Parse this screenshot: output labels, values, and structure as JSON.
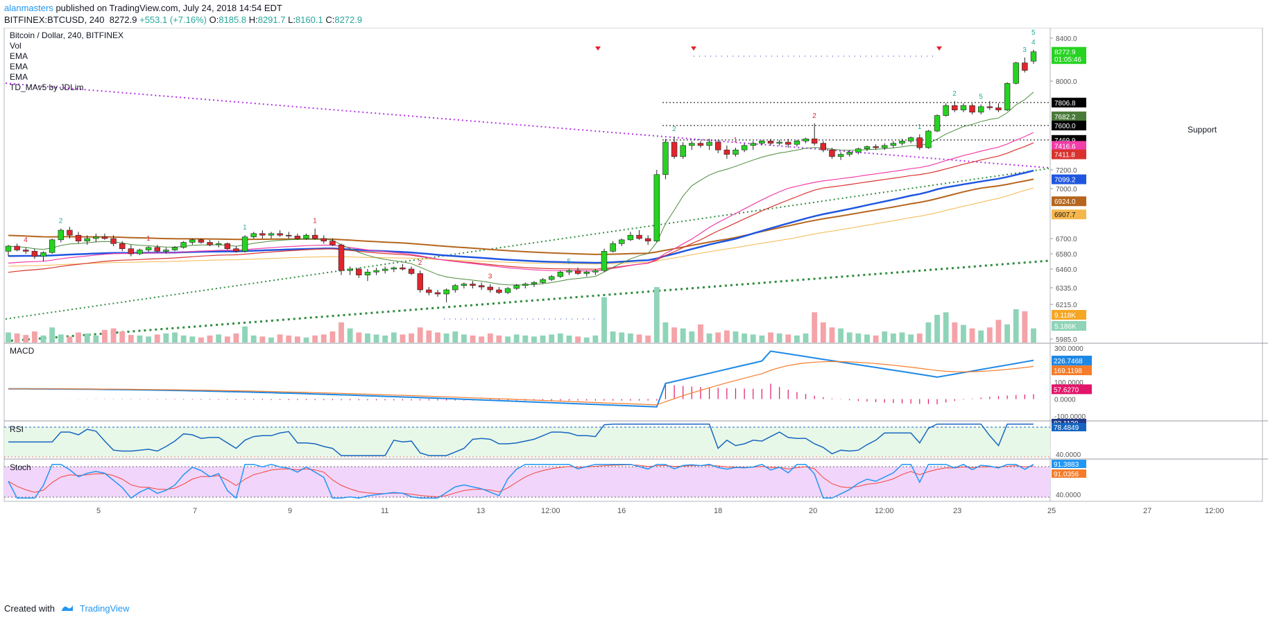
{
  "header": {
    "author": "alanmasters",
    "published": "published on TradingView.com, July 24, 2018 14:54 EDT",
    "symbol": "BITFINEX:BTCUSD, 240",
    "last": "8272.9",
    "change": "+553.1 (+7.16%)",
    "o_label": "O:",
    "o": "8185.8",
    "h_label": "H:",
    "h": "8291.7",
    "l_label": "L:",
    "l": "8160.1",
    "c_label": "C:",
    "c": "8272.9"
  },
  "legend": {
    "title": "Bitcoin / Dollar, 240, BITFINEX",
    "items": [
      "Vol",
      "EMA",
      "EMA",
      "EMA",
      "TD_MAv5 by JDLim"
    ]
  },
  "annotations": {
    "support": "Support"
  },
  "colors": {
    "up": "#26d321",
    "down": "#e0252d",
    "vol_up": "#8fd4b8",
    "vol_down": "#f4a3a8",
    "ema_fast": "#4a8b3a",
    "ema_mid": "#f23ea8",
    "ema_red": "#d9322e",
    "ema_blue": "#1f56e0",
    "ema_brown": "#b5651d",
    "ema_gold": "#f5b74d",
    "trend_purple": "#b233e8",
    "trend_green": "#2e8b3e",
    "macd": "#1e88e5",
    "signal": "#f57c2a",
    "hist": "#e3156a",
    "rsi": "#1565c0",
    "stoch_k": "#2196f3",
    "stoch_d": "#f44336"
  },
  "chart_data": {
    "type": "candlestick",
    "price_axis_ticks": [
      "8400.0",
      "8000.0",
      "7200.0",
      "7000.0",
      "6700.0",
      "6580.0",
      "6460.0",
      "6335.0",
      "6215.0",
      "5985.0"
    ],
    "price_labels": [
      {
        "value": "8272.9",
        "bg": "#26d321",
        "fg": "#ffffff",
        "price": 8272.9
      },
      {
        "value": "01:05:46",
        "bg": "#26d321",
        "fg": "#ffffff",
        "price": 8205
      },
      {
        "value": "7806.8",
        "bg": "#000000",
        "fg": "#ffffff",
        "price": 7806.8
      },
      {
        "value": "7682.2",
        "bg": "#4a7a3a",
        "fg": "#ffffff",
        "price": 7682.2
      },
      {
        "value": "7600.0",
        "bg": "#000000",
        "fg": "#ffffff",
        "price": 7600
      },
      {
        "value": "7469.9",
        "bg": "#000000",
        "fg": "#ffffff",
        "price": 7469.9
      },
      {
        "value": "7416.6",
        "bg": "#f23ea8",
        "fg": "#ffffff",
        "price": 7416.6
      },
      {
        "value": "7411.8",
        "bg": "#d9322e",
        "fg": "#ffffff",
        "price": 7340
      },
      {
        "value": "7099.2",
        "bg": "#1f56e0",
        "fg": "#ffffff",
        "price": 7099.2
      },
      {
        "value": "6924.0",
        "bg": "#b5651d",
        "fg": "#ffffff",
        "price": 6924
      },
      {
        "value": "6907.7",
        "bg": "#f5b74d",
        "fg": "#131722",
        "price": 6845
      }
    ],
    "volume_labels": [
      {
        "value": "9.118K",
        "bg": "#f5a623",
        "fg": "#ffffff"
      },
      {
        "value": "5.186K",
        "bg": "#8fd4b8",
        "fg": "#ffffff"
      }
    ],
    "x_ticks": [
      "5",
      "7",
      "9",
      "11",
      "13",
      "12:00",
      "16",
      "18",
      "20",
      "12:00",
      "23",
      "25",
      "27",
      "12:00"
    ],
    "candles": [
      [
        6600,
        6650,
        6560,
        6640
      ],
      [
        6640,
        6660,
        6600,
        6610
      ],
      [
        6610,
        6630,
        6580,
        6600
      ],
      [
        6600,
        6620,
        6540,
        6560
      ],
      [
        6560,
        6600,
        6520,
        6590
      ],
      [
        6590,
        6700,
        6580,
        6690
      ],
      [
        6690,
        6760,
        6670,
        6750
      ],
      [
        6750,
        6770,
        6700,
        6720
      ],
      [
        6720,
        6740,
        6660,
        6680
      ],
      [
        6680,
        6720,
        6650,
        6700
      ],
      [
        6700,
        6730,
        6670,
        6710
      ],
      [
        6710,
        6730,
        6690,
        6700
      ],
      [
        6700,
        6720,
        6640,
        6660
      ],
      [
        6660,
        6680,
        6600,
        6620
      ],
      [
        6620,
        6650,
        6560,
        6580
      ],
      [
        6580,
        6620,
        6570,
        6610
      ],
      [
        6610,
        6640,
        6590,
        6630
      ],
      [
        6630,
        6650,
        6590,
        6600
      ],
      [
        6600,
        6630,
        6580,
        6610
      ],
      [
        6610,
        6640,
        6600,
        6630
      ],
      [
        6630,
        6680,
        6620,
        6670
      ],
      [
        6670,
        6700,
        6650,
        6690
      ],
      [
        6690,
        6700,
        6660,
        6670
      ],
      [
        6670,
        6690,
        6640,
        6650
      ],
      [
        6650,
        6680,
        6630,
        6660
      ],
      [
        6660,
        6670,
        6610,
        6620
      ],
      [
        6620,
        6640,
        6590,
        6600
      ],
      [
        6600,
        6720,
        6590,
        6710
      ],
      [
        6710,
        6740,
        6700,
        6730
      ],
      [
        6730,
        6750,
        6700,
        6720
      ],
      [
        6720,
        6740,
        6700,
        6730
      ],
      [
        6730,
        6750,
        6710,
        6720
      ],
      [
        6720,
        6740,
        6700,
        6715
      ],
      [
        6715,
        6730,
        6690,
        6700
      ],
      [
        6700,
        6730,
        6690,
        6720
      ],
      [
        6720,
        6760,
        6690,
        6700
      ],
      [
        6700,
        6720,
        6660,
        6680
      ],
      [
        6680,
        6700,
        6640,
        6650
      ],
      [
        6650,
        6660,
        6420,
        6450
      ],
      [
        6450,
        6480,
        6420,
        6460
      ],
      [
        6460,
        6470,
        6400,
        6420
      ],
      [
        6420,
        6460,
        6380,
        6440
      ],
      [
        6440,
        6470,
        6420,
        6450
      ],
      [
        6450,
        6480,
        6430,
        6460
      ],
      [
        6460,
        6480,
        6440,
        6470
      ],
      [
        6470,
        6500,
        6450,
        6460
      ],
      [
        6460,
        6480,
        6420,
        6430
      ],
      [
        6430,
        6450,
        6300,
        6320
      ],
      [
        6320,
        6340,
        6280,
        6300
      ],
      [
        6300,
        6320,
        6270,
        6290
      ],
      [
        6290,
        6330,
        6230,
        6320
      ],
      [
        6320,
        6360,
        6300,
        6350
      ],
      [
        6350,
        6370,
        6330,
        6360
      ],
      [
        6360,
        6380,
        6330,
        6350
      ],
      [
        6350,
        6370,
        6320,
        6340
      ],
      [
        6340,
        6360,
        6300,
        6320
      ],
      [
        6320,
        6340,
        6290,
        6300
      ],
      [
        6300,
        6340,
        6290,
        6330
      ],
      [
        6330,
        6360,
        6320,
        6350
      ],
      [
        6350,
        6370,
        6330,
        6360
      ],
      [
        6360,
        6380,
        6340,
        6370
      ],
      [
        6370,
        6400,
        6360,
        6390
      ],
      [
        6390,
        6420,
        6380,
        6410
      ],
      [
        6410,
        6450,
        6400,
        6440
      ],
      [
        6440,
        6460,
        6420,
        6450
      ],
      [
        6450,
        6470,
        6420,
        6430
      ],
      [
        6430,
        6450,
        6410,
        6440
      ],
      [
        6440,
        6460,
        6420,
        6450
      ],
      [
        6450,
        6620,
        6440,
        6600
      ],
      [
        6600,
        6680,
        6590,
        6660
      ],
      [
        6660,
        6700,
        6640,
        6690
      ],
      [
        6690,
        6740,
        6680,
        6720
      ],
      [
        6720,
        6750,
        6690,
        6700
      ],
      [
        6700,
        6720,
        6650,
        6680
      ],
      [
        6680,
        7200,
        6670,
        7150
      ],
      [
        7150,
        7480,
        7100,
        7450
      ],
      [
        7450,
        7500,
        7300,
        7320
      ],
      [
        7320,
        7450,
        7300,
        7420
      ],
      [
        7420,
        7460,
        7380,
        7440
      ],
      [
        7440,
        7460,
        7400,
        7420
      ],
      [
        7420,
        7480,
        7380,
        7450
      ],
      [
        7450,
        7470,
        7350,
        7380
      ],
      [
        7380,
        7420,
        7300,
        7340
      ],
      [
        7340,
        7400,
        7320,
        7380
      ],
      [
        7380,
        7440,
        7360,
        7420
      ],
      [
        7420,
        7460,
        7380,
        7440
      ],
      [
        7440,
        7470,
        7420,
        7460
      ],
      [
        7460,
        7480,
        7420,
        7440
      ],
      [
        7440,
        7470,
        7420,
        7450
      ],
      [
        7450,
        7480,
        7400,
        7430
      ],
      [
        7430,
        7470,
        7410,
        7460
      ],
      [
        7460,
        7490,
        7440,
        7480
      ],
      [
        7480,
        7620,
        7420,
        7440
      ],
      [
        7440,
        7460,
        7360,
        7380
      ],
      [
        7380,
        7400,
        7300,
        7320
      ],
      [
        7320,
        7360,
        7290,
        7340
      ],
      [
        7340,
        7380,
        7320,
        7360
      ],
      [
        7360,
        7400,
        7340,
        7390
      ],
      [
        7390,
        7420,
        7370,
        7410
      ],
      [
        7410,
        7430,
        7380,
        7400
      ],
      [
        7400,
        7440,
        7380,
        7420
      ],
      [
        7420,
        7460,
        7400,
        7440
      ],
      [
        7440,
        7480,
        7420,
        7460
      ],
      [
        7460,
        7500,
        7440,
        7490
      ],
      [
        7490,
        7520,
        7380,
        7400
      ],
      [
        7400,
        7560,
        7390,
        7550
      ],
      [
        7550,
        7700,
        7540,
        7690
      ],
      [
        7690,
        7800,
        7680,
        7780
      ],
      [
        7780,
        7820,
        7720,
        7740
      ],
      [
        7740,
        7800,
        7720,
        7780
      ],
      [
        7780,
        7800,
        7700,
        7720
      ],
      [
        7720,
        7790,
        7700,
        7770
      ],
      [
        7770,
        7820,
        7740,
        7760
      ],
      [
        7760,
        7800,
        7720,
        7740
      ],
      [
        7740,
        7990,
        7730,
        7980
      ],
      [
        7980,
        8180,
        7970,
        8170
      ],
      [
        8170,
        8220,
        8080,
        8100
      ],
      [
        8185.8,
        8291.7,
        8160.1,
        8272.9
      ]
    ],
    "markers": [
      {
        "i": 2,
        "text": "4",
        "color": "#e0252d"
      },
      {
        "i": 6,
        "text": "2",
        "color": "#26a69a"
      },
      {
        "i": 16,
        "text": "1",
        "color": "#e0252d"
      },
      {
        "i": 27,
        "text": "1",
        "color": "#26a69a"
      },
      {
        "i": 35,
        "text": "1",
        "color": "#e0252d"
      },
      {
        "i": 47,
        "text": "2",
        "color": "#e0252d"
      },
      {
        "i": 55,
        "text": "3",
        "color": "#e0252d"
      },
      {
        "i": 64,
        "text": "5",
        "color": "#26a69a"
      },
      {
        "i": 76,
        "text": "2",
        "color": "#26a69a"
      },
      {
        "i": 83,
        "text": "1",
        "color": "#e0252d"
      },
      {
        "i": 92,
        "text": "2",
        "color": "#e0252d"
      },
      {
        "i": 104,
        "text": "1",
        "color": "#26a69a"
      },
      {
        "i": 108,
        "text": "2",
        "color": "#26a69a"
      },
      {
        "i": 111,
        "text": "5",
        "color": "#26a69a"
      },
      {
        "i": 116,
        "text": "3",
        "color": "#26a69a"
      },
      {
        "i": 117,
        "text": "4",
        "color": "#26a69a"
      },
      {
        "i": 117,
        "text": "5",
        "color": "#26a69a",
        "dy": -14
      }
    ],
    "volume": [
      20,
      18,
      15,
      22,
      14,
      30,
      16,
      12,
      20,
      18,
      14,
      25,
      28,
      22,
      15,
      14,
      12,
      16,
      18,
      20,
      14,
      12,
      10,
      14,
      16,
      12,
      18,
      32,
      14,
      12,
      10,
      16,
      14,
      12,
      10,
      14,
      16,
      22,
      40,
      28,
      20,
      18,
      16,
      14,
      20,
      16,
      18,
      30,
      24,
      20,
      18,
      22,
      16,
      14,
      12,
      18,
      14,
      12,
      16,
      14,
      12,
      14,
      16,
      18,
      14,
      12,
      10,
      14,
      90,
      22,
      20,
      18,
      16,
      14,
      110,
      40,
      30,
      28,
      22,
      36,
      18,
      20,
      24,
      22,
      18,
      16,
      14,
      20,
      18,
      16,
      14,
      18,
      60,
      40,
      30,
      28,
      20,
      18,
      16,
      14,
      22,
      18,
      20,
      16,
      18,
      40,
      55,
      60,
      40,
      35,
      28,
      24,
      30,
      45,
      36,
      66,
      62,
      28
    ],
    "ema_fast": {
      "start": 6540,
      "end": 7680
    },
    "macd": {
      "axis": [
        "300.0000",
        "226.7468",
        "169.1198",
        "100.0000",
        "57.6270",
        "0.0000",
        "-100.0000"
      ]
    },
    "rsi": {
      "axis": [
        "82.1130",
        "78.4849",
        "40.0000"
      ],
      "label": "RSI"
    },
    "stoch": {
      "axis": [
        "91.3883",
        "91.0356",
        "40.0000"
      ],
      "label": "Stoch"
    },
    "macd_label": "MACD"
  },
  "footer": {
    "created": "Created with",
    "brand": "TradingView"
  }
}
